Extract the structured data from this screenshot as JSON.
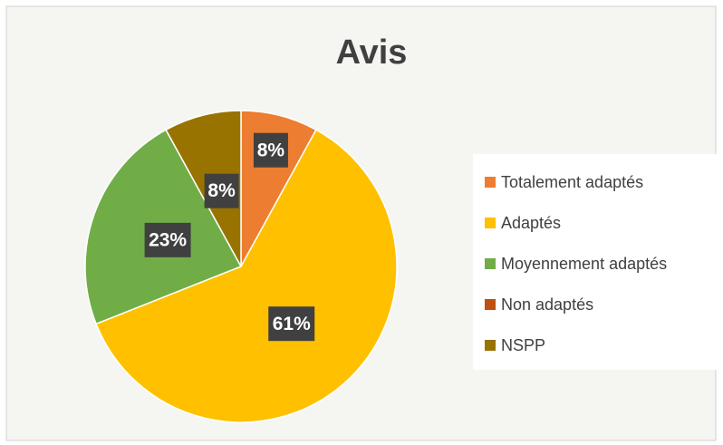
{
  "chart_data": {
    "type": "pie",
    "title": "Avis",
    "categories": [
      "Totalement adaptés",
      "Adaptés",
      "Moyennement adaptés",
      "Non adaptés",
      "NSPP"
    ],
    "values": [
      8,
      61,
      23,
      0,
      8
    ],
    "value_labels": [
      "8%",
      "61%",
      "23%",
      null,
      "8%"
    ],
    "colors": [
      "#ED7D31",
      "#FFC000",
      "#70AD47",
      "#C0500F",
      "#997300"
    ],
    "legend": "right"
  }
}
